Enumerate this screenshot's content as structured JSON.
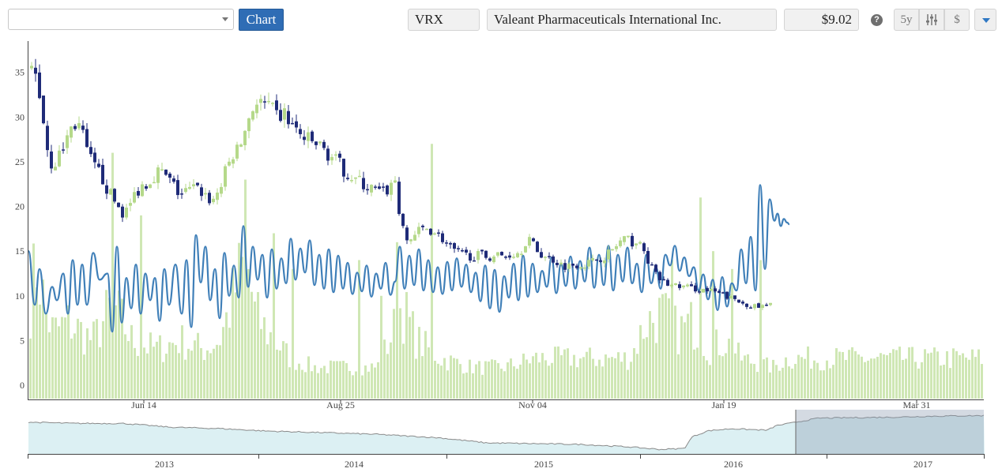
{
  "toolbar": {
    "selector_value": "",
    "chart_button": "Chart",
    "ticker": "VRX",
    "company_name": "Valeant Pharmaceuticals International Inc.",
    "price": "$9.02",
    "help_icon": "?",
    "range_button": "5y",
    "currency_button": "$"
  },
  "colors": {
    "candle_up": "#b5d98a",
    "candle_down": "#1f2b78",
    "volume": "#cfe7b4",
    "indicator_line": "#3f7fb8",
    "navigator_line": "#8a8a8a",
    "navigator_fill": "#bfe3ea",
    "navigator_window": "#8594ac"
  },
  "chart_data": {
    "type": "candlestick",
    "yaxis": {
      "ticks": [
        0,
        5,
        10,
        15,
        20,
        25,
        30,
        35
      ],
      "ylim": [
        -1.5,
        38.5
      ]
    },
    "xaxis": {
      "tick_labels": [
        "Jun 14",
        "Aug 25",
        "Nov 04",
        "Jan 19",
        "Mar 31"
      ]
    },
    "navigator": {
      "year_labels": [
        "2013",
        "2014",
        "2015",
        "2016",
        "2017"
      ]
    },
    "price_anchors": [
      [
        0,
        35.5
      ],
      [
        8,
        34.5
      ],
      [
        15,
        31
      ],
      [
        22,
        26.5
      ],
      [
        28,
        24.5
      ],
      [
        38,
        25.8
      ],
      [
        48,
        28
      ],
      [
        55,
        29.3
      ],
      [
        64,
        29
      ],
      [
        70,
        26.5
      ],
      [
        80,
        24.5
      ],
      [
        90,
        23.5
      ],
      [
        100,
        21.5
      ],
      [
        110,
        20.2
      ],
      [
        118,
        19.2
      ],
      [
        125,
        19.8
      ],
      [
        133,
        21.5
      ],
      [
        143,
        22.5
      ],
      [
        153,
        23
      ],
      [
        160,
        24
      ],
      [
        170,
        23.5
      ],
      [
        180,
        22.5
      ],
      [
        190,
        21.3
      ],
      [
        200,
        21.8
      ],
      [
        210,
        22
      ],
      [
        220,
        21.5
      ],
      [
        230,
        20.5
      ],
      [
        240,
        22
      ],
      [
        250,
        24.5
      ],
      [
        258,
        26
      ],
      [
        264,
        26.3
      ],
      [
        272,
        28.5
      ],
      [
        280,
        31
      ],
      [
        288,
        31.6
      ],
      [
        296,
        31.3
      ],
      [
        304,
        30.8
      ],
      [
        312,
        30
      ],
      [
        322,
        30.3
      ],
      [
        330,
        29.2
      ],
      [
        338,
        28.3
      ],
      [
        346,
        27.6
      ],
      [
        356,
        27.2
      ],
      [
        366,
        26.8
      ],
      [
        376,
        26
      ],
      [
        386,
        25.2
      ],
      [
        396,
        24.2
      ],
      [
        406,
        23.4
      ],
      [
        416,
        22.8
      ],
      [
        426,
        22.2
      ],
      [
        436,
        21.8
      ],
      [
        446,
        21.4
      ],
      [
        456,
        22.2
      ],
      [
        462,
        23
      ],
      [
        470,
        17.6
      ],
      [
        478,
        16
      ],
      [
        488,
        17
      ],
      [
        500,
        17.6
      ],
      [
        510,
        17.3
      ],
      [
        520,
        16.6
      ],
      [
        530,
        15.5
      ],
      [
        540,
        14.8
      ],
      [
        550,
        14.6
      ],
      [
        560,
        14.4
      ],
      [
        570,
        14.6
      ],
      [
        580,
        14.3
      ],
      [
        590,
        14.6
      ],
      [
        600,
        14.4
      ],
      [
        610,
        14.7
      ],
      [
        620,
        14.9
      ],
      [
        630,
        16.6
      ],
      [
        640,
        15.2
      ],
      [
        650,
        14.4
      ],
      [
        660,
        14.2
      ],
      [
        670,
        13.6
      ],
      [
        680,
        13.3
      ],
      [
        690,
        13.6
      ],
      [
        700,
        13.5
      ],
      [
        710,
        13.8
      ],
      [
        720,
        14.2
      ],
      [
        730,
        14.6
      ],
      [
        740,
        15.4
      ],
      [
        750,
        16.3
      ],
      [
        760,
        16.1
      ],
      [
        770,
        15.9
      ],
      [
        780,
        14.4
      ],
      [
        790,
        12.5
      ],
      [
        800,
        11.6
      ],
      [
        810,
        11.2
      ],
      [
        820,
        11.1
      ],
      [
        830,
        11
      ],
      [
        840,
        10.8
      ],
      [
        850,
        10.7
      ],
      [
        860,
        10.5
      ],
      [
        870,
        10.3
      ],
      [
        880,
        10
      ],
      [
        890,
        9.6
      ],
      [
        900,
        9.2
      ],
      [
        910,
        9
      ],
      [
        920,
        8.7
      ],
      [
        930,
        8.8
      ],
      [
        940,
        9.02
      ]
    ],
    "indicator_anchors": [
      [
        0,
        15
      ],
      [
        8,
        9
      ],
      [
        14,
        13
      ],
      [
        22,
        8
      ],
      [
        30,
        11
      ],
      [
        36,
        9.5
      ],
      [
        44,
        12.5
      ],
      [
        50,
        8
      ],
      [
        56,
        14
      ],
      [
        62,
        9
      ],
      [
        68,
        13.5
      ],
      [
        74,
        9
      ],
      [
        82,
        14.8
      ],
      [
        90,
        11.8
      ],
      [
        100,
        12.5
      ],
      [
        106,
        6
      ],
      [
        112,
        15.5
      ],
      [
        118,
        7
      ],
      [
        124,
        12
      ],
      [
        130,
        8.6
      ],
      [
        136,
        13.5
      ],
      [
        142,
        8
      ],
      [
        148,
        12.5
      ],
      [
        154,
        9.5
      ],
      [
        160,
        12
      ],
      [
        166,
        7.2
      ],
      [
        172,
        13
      ],
      [
        178,
        9
      ],
      [
        186,
        13.5
      ],
      [
        194,
        8
      ],
      [
        200,
        14
      ],
      [
        206,
        6.5
      ],
      [
        212,
        16.8
      ],
      [
        218,
        11.5
      ],
      [
        224,
        15.5
      ],
      [
        230,
        9.5
      ],
      [
        236,
        13
      ],
      [
        242,
        7.5
      ],
      [
        248,
        14.8
      ],
      [
        254,
        10
      ],
      [
        260,
        13.4
      ],
      [
        266,
        9.8
      ],
      [
        272,
        17.8
      ],
      [
        278,
        11
      ],
      [
        284,
        15.5
      ],
      [
        290,
        11.8
      ],
      [
        296,
        14.6
      ],
      [
        302,
        9.8
      ],
      [
        308,
        15.2
      ],
      [
        314,
        10.8
      ],
      [
        320,
        14.2
      ],
      [
        326,
        11.4
      ],
      [
        332,
        16.4
      ],
      [
        338,
        11.8
      ],
      [
        344,
        15.3
      ],
      [
        350,
        12.6
      ],
      [
        356,
        16.2
      ],
      [
        362,
        11.2
      ],
      [
        368,
        14.6
      ],
      [
        374,
        10.8
      ],
      [
        380,
        15.2
      ],
      [
        386,
        10.4
      ],
      [
        392,
        14.5
      ],
      [
        398,
        10.8
      ],
      [
        404,
        13.7
      ],
      [
        410,
        10.2
      ],
      [
        416,
        12.6
      ],
      [
        422,
        10.5
      ],
      [
        428,
        13.4
      ],
      [
        434,
        9.9
      ],
      [
        440,
        12.5
      ],
      [
        446,
        10.8
      ],
      [
        452,
        13.7
      ],
      [
        458,
        10.1
      ],
      [
        464,
        11.6
      ],
      [
        470,
        15.5
      ],
      [
        476,
        10.8
      ],
      [
        482,
        14.5
      ],
      [
        488,
        11.2
      ],
      [
        494,
        15.2
      ],
      [
        500,
        10.6
      ],
      [
        506,
        14
      ],
      [
        512,
        10.4
      ],
      [
        518,
        13.2
      ],
      [
        524,
        10.2
      ],
      [
        530,
        13.8
      ],
      [
        536,
        10.6
      ],
      [
        542,
        14.2
      ],
      [
        548,
        11
      ],
      [
        554,
        13.5
      ],
      [
        560,
        10.4
      ],
      [
        566,
        12.6
      ],
      [
        572,
        9.4
      ],
      [
        578,
        13.4
      ],
      [
        584,
        8.6
      ],
      [
        590,
        12.9
      ],
      [
        596,
        8.2
      ],
      [
        602,
        12.2
      ],
      [
        608,
        9.8
      ],
      [
        614,
        13.6
      ],
      [
        620,
        9.5
      ],
      [
        626,
        14.5
      ],
      [
        632,
        9.9
      ],
      [
        638,
        13.6
      ],
      [
        644,
        10.4
      ],
      [
        650,
        12.8
      ],
      [
        656,
        11
      ],
      [
        662,
        14.3
      ],
      [
        668,
        10.3
      ],
      [
        674,
        13.6
      ],
      [
        680,
        11.1
      ],
      [
        686,
        14.4
      ],
      [
        692,
        10.8
      ],
      [
        698,
        13.9
      ],
      [
        704,
        11.6
      ],
      [
        710,
        15.4
      ],
      [
        716,
        10.9
      ],
      [
        722,
        14.6
      ],
      [
        728,
        11.2
      ],
      [
        734,
        15.6
      ],
      [
        740,
        10.6
      ],
      [
        746,
        14.6
      ],
      [
        752,
        11.6
      ],
      [
        758,
        15.4
      ],
      [
        764,
        11.4
      ],
      [
        770,
        13.6
      ],
      [
        776,
        10.4
      ],
      [
        782,
        14.6
      ],
      [
        788,
        11.4
      ],
      [
        794,
        13.2
      ],
      [
        800,
        10.8
      ],
      [
        806,
        14.6
      ],
      [
        812,
        13.4
      ],
      [
        818,
        15.6
      ],
      [
        824,
        12.8
      ],
      [
        830,
        14.3
      ],
      [
        836,
        12.2
      ],
      [
        842,
        13.2
      ],
      [
        848,
        10.6
      ],
      [
        854,
        12.4
      ],
      [
        860,
        9.6
      ],
      [
        866,
        11.8
      ],
      [
        872,
        8.4
      ],
      [
        878,
        12.1
      ],
      [
        884,
        8.8
      ],
      [
        890,
        11.4
      ],
      [
        896,
        10.6
      ],
      [
        902,
        15.2
      ],
      [
        908,
        11.4
      ],
      [
        914,
        16.6
      ],
      [
        920,
        10.6
      ],
      [
        926,
        22.4
      ],
      [
        932,
        13
      ],
      [
        938,
        20.8
      ],
      [
        944,
        18.4
      ],
      [
        948,
        19.2
      ],
      [
        952,
        17.8
      ],
      [
        956,
        18.6
      ],
      [
        960,
        18.2
      ],
      [
        963,
        18
      ]
    ],
    "volume_anchors": [
      [
        0,
        9
      ],
      [
        10,
        14
      ],
      [
        20,
        8
      ],
      [
        30,
        6
      ],
      [
        50,
        7
      ],
      [
        80,
        5
      ],
      [
        105,
        9
      ],
      [
        130,
        5
      ],
      [
        160,
        4
      ],
      [
        190,
        5
      ],
      [
        220,
        4
      ],
      [
        240,
        5
      ],
      [
        255,
        9
      ],
      [
        265,
        12
      ],
      [
        275,
        14
      ],
      [
        285,
        8
      ],
      [
        300,
        6
      ],
      [
        330,
        3
      ],
      [
        360,
        2
      ],
      [
        400,
        2
      ],
      [
        440,
        2
      ],
      [
        460,
        6
      ],
      [
        470,
        9
      ],
      [
        480,
        7
      ],
      [
        490,
        5
      ],
      [
        520,
        3
      ],
      [
        560,
        2
      ],
      [
        600,
        2
      ],
      [
        640,
        3
      ],
      [
        700,
        3
      ],
      [
        760,
        3
      ],
      [
        780,
        7
      ],
      [
        800,
        8
      ],
      [
        820,
        6
      ],
      [
        840,
        7
      ],
      [
        860,
        4
      ],
      [
        880,
        5
      ],
      [
        900,
        3
      ],
      [
        940,
        2
      ],
      [
        960,
        3
      ]
    ],
    "volume_spikes": [
      [
        106,
        26
      ],
      [
        140,
        19
      ],
      [
        272,
        23
      ],
      [
        308,
        17
      ],
      [
        332,
        13
      ],
      [
        418,
        14
      ],
      [
        444,
        10
      ],
      [
        464,
        16
      ],
      [
        510,
        27
      ],
      [
        814,
        14
      ],
      [
        850,
        21
      ],
      [
        864,
        15
      ],
      [
        890,
        13
      ],
      [
        926,
        14
      ]
    ],
    "navigator_anchors": [
      [
        0,
        11
      ],
      [
        60,
        10.5
      ],
      [
        120,
        10.5
      ],
      [
        180,
        9
      ],
      [
        240,
        8.5
      ],
      [
        300,
        7.5
      ],
      [
        380,
        6.8
      ],
      [
        440,
        6.2
      ],
      [
        520,
        4.8
      ],
      [
        580,
        2.8
      ],
      [
        640,
        2.5
      ],
      [
        700,
        2.2
      ],
      [
        760,
        1.2
      ],
      [
        800,
        0.2
      ],
      [
        830,
        0.6
      ],
      [
        840,
        5.2
      ],
      [
        860,
        7.6
      ],
      [
        890,
        8.4
      ],
      [
        920,
        8
      ],
      [
        935,
        7.8
      ],
      [
        946,
        9.6
      ],
      [
        1000,
        12.6
      ],
      [
        1050,
        12.8
      ],
      [
        1100,
        13
      ],
      [
        1150,
        13.4
      ],
      [
        1210,
        13.6
      ]
    ]
  }
}
